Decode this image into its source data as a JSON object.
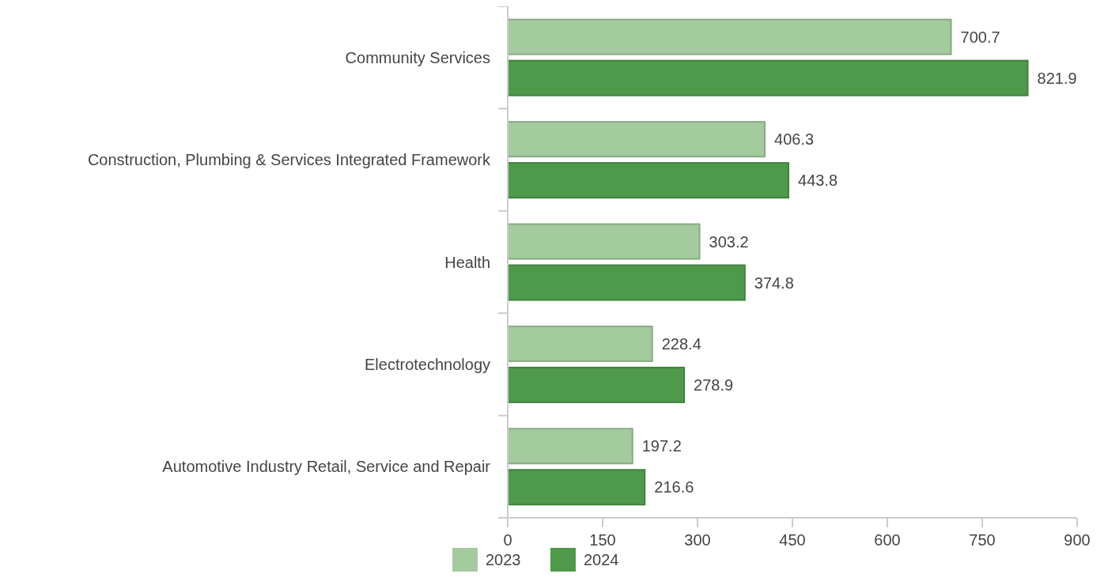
{
  "chart_data": {
    "type": "bar",
    "orientation": "horizontal",
    "categories": [
      "Community Services",
      "Construction, Plumbing & Services Integrated Framework",
      "Health",
      "Electrotechnology",
      "Automotive Industry Retail, Service and Repair"
    ],
    "series": [
      {
        "name": "2023",
        "color": "#a3cb9e",
        "values": [
          700.7,
          406.3,
          303.2,
          228.4,
          197.2
        ]
      },
      {
        "name": "2024",
        "color": "#4e9a4a",
        "values": [
          821.9,
          443.8,
          374.8,
          278.9,
          216.6
        ]
      }
    ],
    "xlim": [
      0,
      900
    ],
    "xticks": [
      0,
      150,
      300,
      450,
      600,
      750,
      900
    ],
    "data_labels": true,
    "legend": "bottom",
    "grid": false
  }
}
